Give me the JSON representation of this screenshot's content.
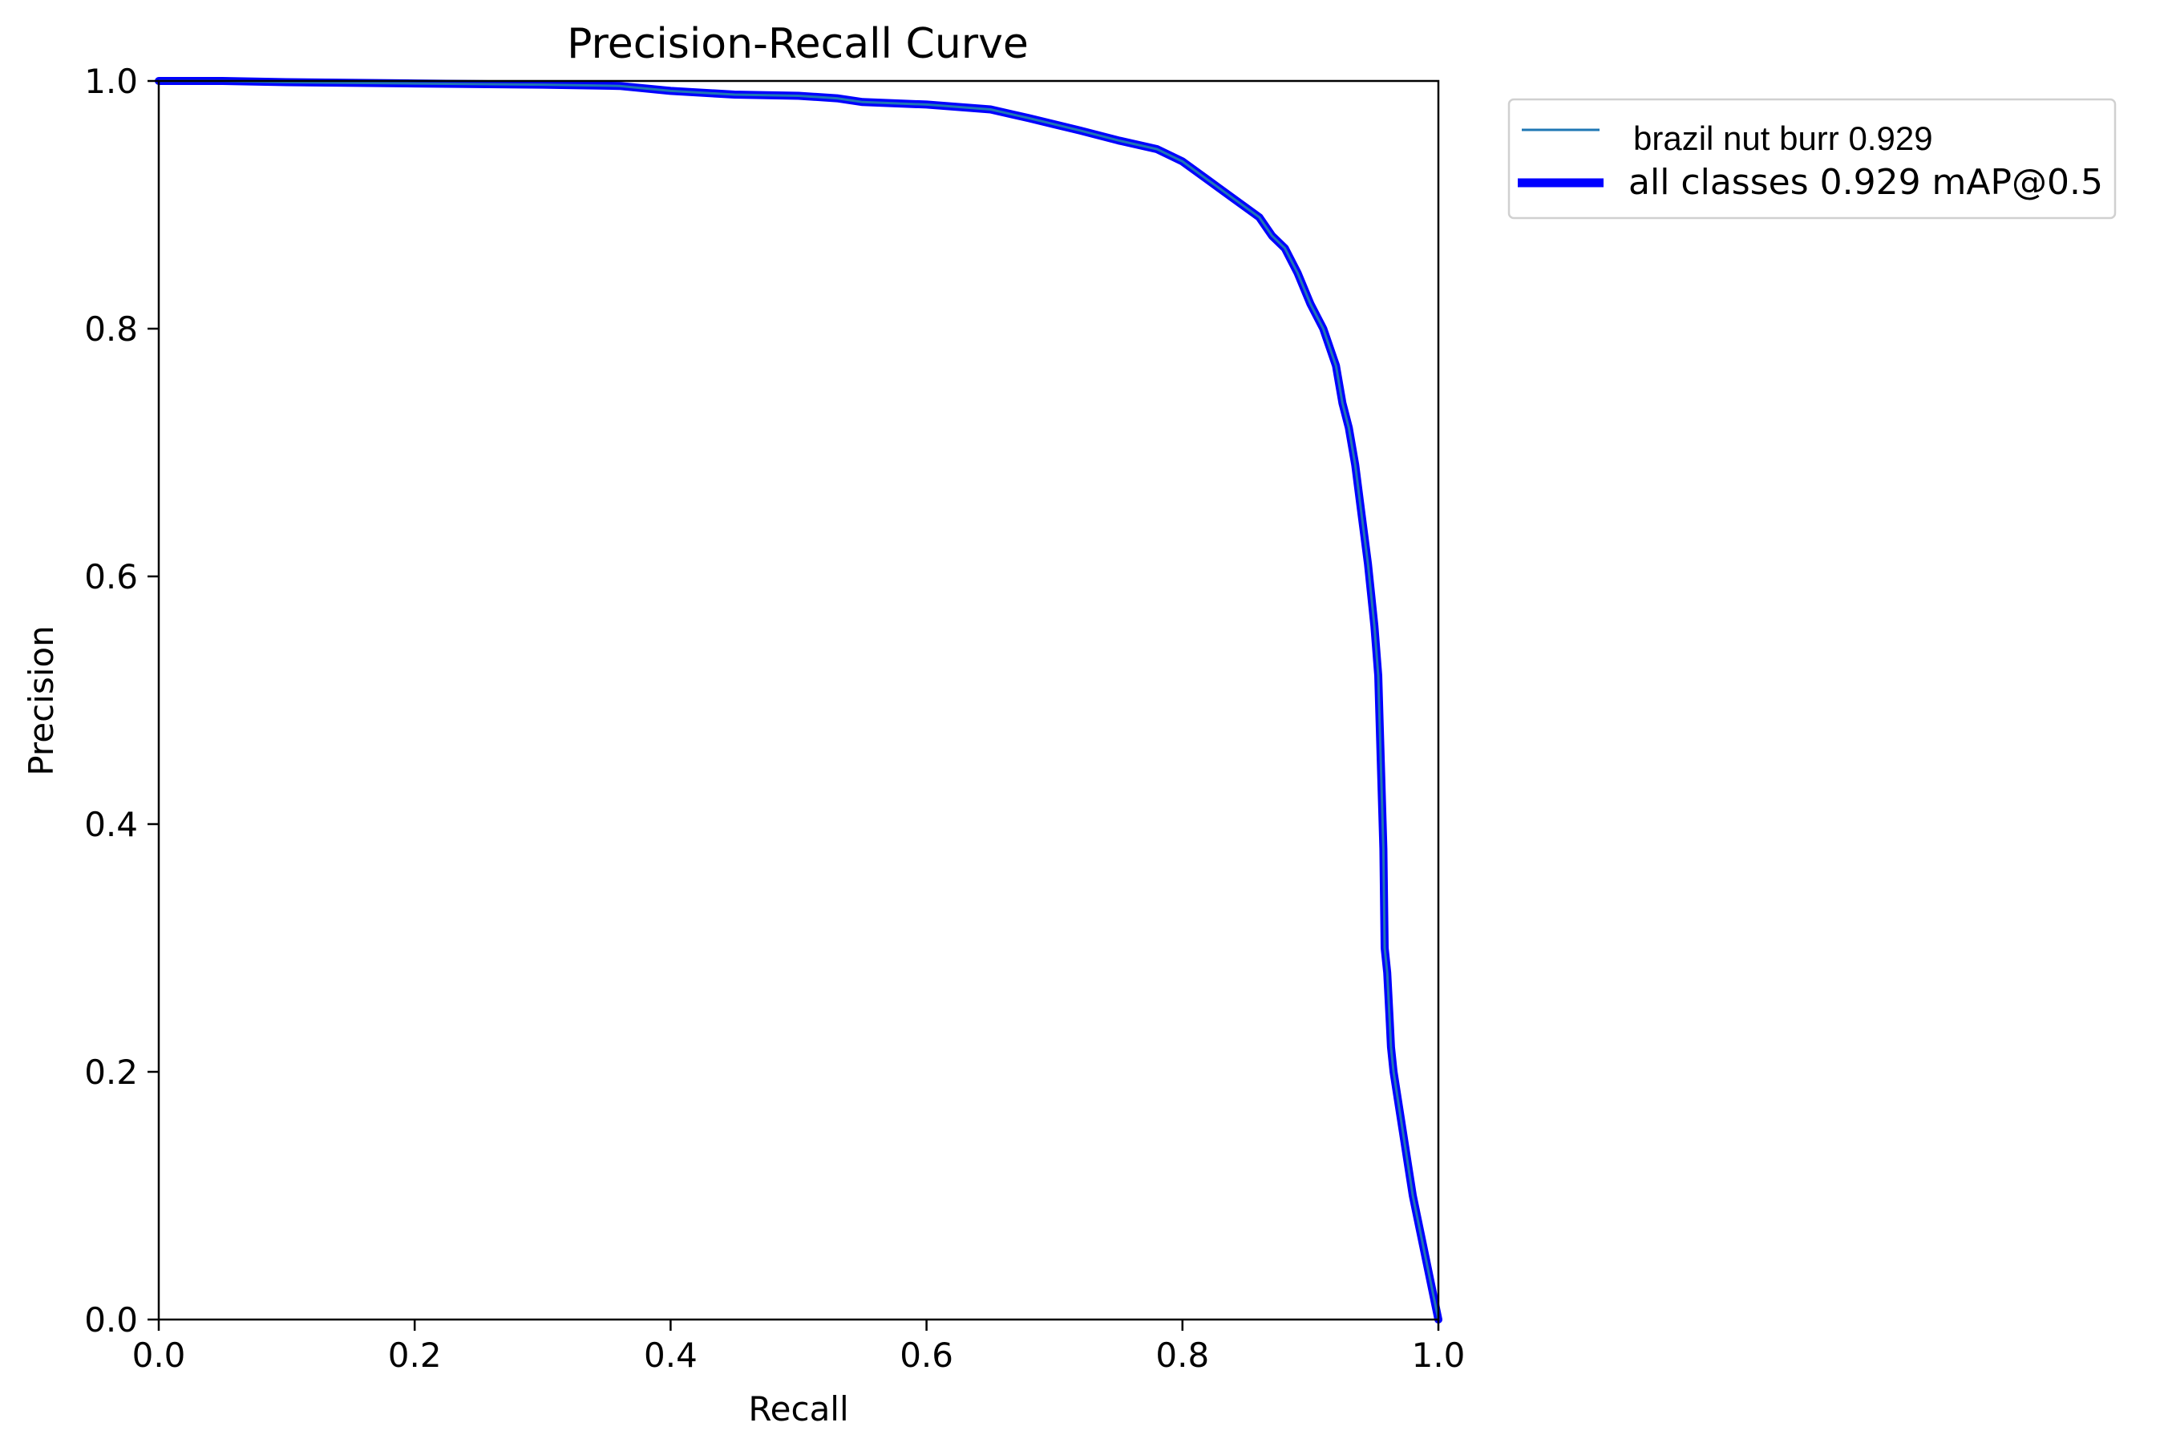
{
  "chart_data": {
    "type": "line",
    "title": "Precision-Recall Curve",
    "xlabel": "Recall",
    "ylabel": "Precision",
    "xlim": [
      0,
      1
    ],
    "ylim": [
      0,
      1
    ],
    "xticks": [
      "0.0",
      "0.2",
      "0.4",
      "0.6",
      "0.8",
      "1.0"
    ],
    "yticks": [
      "0.0",
      "0.2",
      "0.4",
      "0.6",
      "0.8",
      "1.0"
    ],
    "grid": false,
    "legend_position": "outside-top-right",
    "series": [
      {
        "name": "brazil nut burr 0.929",
        "color": "#1f77b4",
        "style": "thin",
        "x": [
          0,
          0.05,
          0.1,
          0.2,
          0.3,
          0.36,
          0.4,
          0.45,
          0.5,
          0.53,
          0.55,
          0.6,
          0.65,
          0.68,
          0.7,
          0.72,
          0.75,
          0.78,
          0.8,
          0.82,
          0.84,
          0.86,
          0.87,
          0.88,
          0.89,
          0.9,
          0.91,
          0.92,
          0.925,
          0.93,
          0.935,
          0.94,
          0.945,
          0.95,
          0.953,
          0.955,
          0.957,
          0.958,
          0.96,
          0.962,
          0.963,
          0.965,
          0.98,
          1.0
        ],
        "y": [
          1.0,
          1.0,
          0.999,
          0.998,
          0.997,
          0.996,
          0.992,
          0.989,
          0.988,
          0.986,
          0.983,
          0.981,
          0.977,
          0.97,
          0.965,
          0.96,
          0.952,
          0.945,
          0.935,
          0.92,
          0.905,
          0.89,
          0.875,
          0.865,
          0.845,
          0.82,
          0.8,
          0.77,
          0.74,
          0.72,
          0.69,
          0.65,
          0.61,
          0.56,
          0.52,
          0.45,
          0.38,
          0.3,
          0.28,
          0.24,
          0.22,
          0.2,
          0.1,
          0.0
        ]
      },
      {
        "name": "all classes 0.929 mAP@0.5",
        "color": "#0000ff",
        "style": "thick",
        "x": [
          0,
          0.05,
          0.1,
          0.2,
          0.3,
          0.36,
          0.4,
          0.45,
          0.5,
          0.53,
          0.55,
          0.6,
          0.65,
          0.68,
          0.7,
          0.72,
          0.75,
          0.78,
          0.8,
          0.82,
          0.84,
          0.86,
          0.87,
          0.88,
          0.89,
          0.9,
          0.91,
          0.92,
          0.925,
          0.93,
          0.935,
          0.94,
          0.945,
          0.95,
          0.953,
          0.955,
          0.957,
          0.958,
          0.96,
          0.962,
          0.963,
          0.965,
          0.98,
          1.0
        ],
        "y": [
          1.0,
          1.0,
          0.999,
          0.998,
          0.997,
          0.996,
          0.992,
          0.989,
          0.988,
          0.986,
          0.983,
          0.981,
          0.977,
          0.97,
          0.965,
          0.96,
          0.952,
          0.945,
          0.935,
          0.92,
          0.905,
          0.89,
          0.875,
          0.865,
          0.845,
          0.82,
          0.8,
          0.77,
          0.74,
          0.72,
          0.69,
          0.65,
          0.61,
          0.56,
          0.52,
          0.45,
          0.38,
          0.3,
          0.28,
          0.24,
          0.22,
          0.2,
          0.1,
          0.0
        ]
      }
    ]
  }
}
